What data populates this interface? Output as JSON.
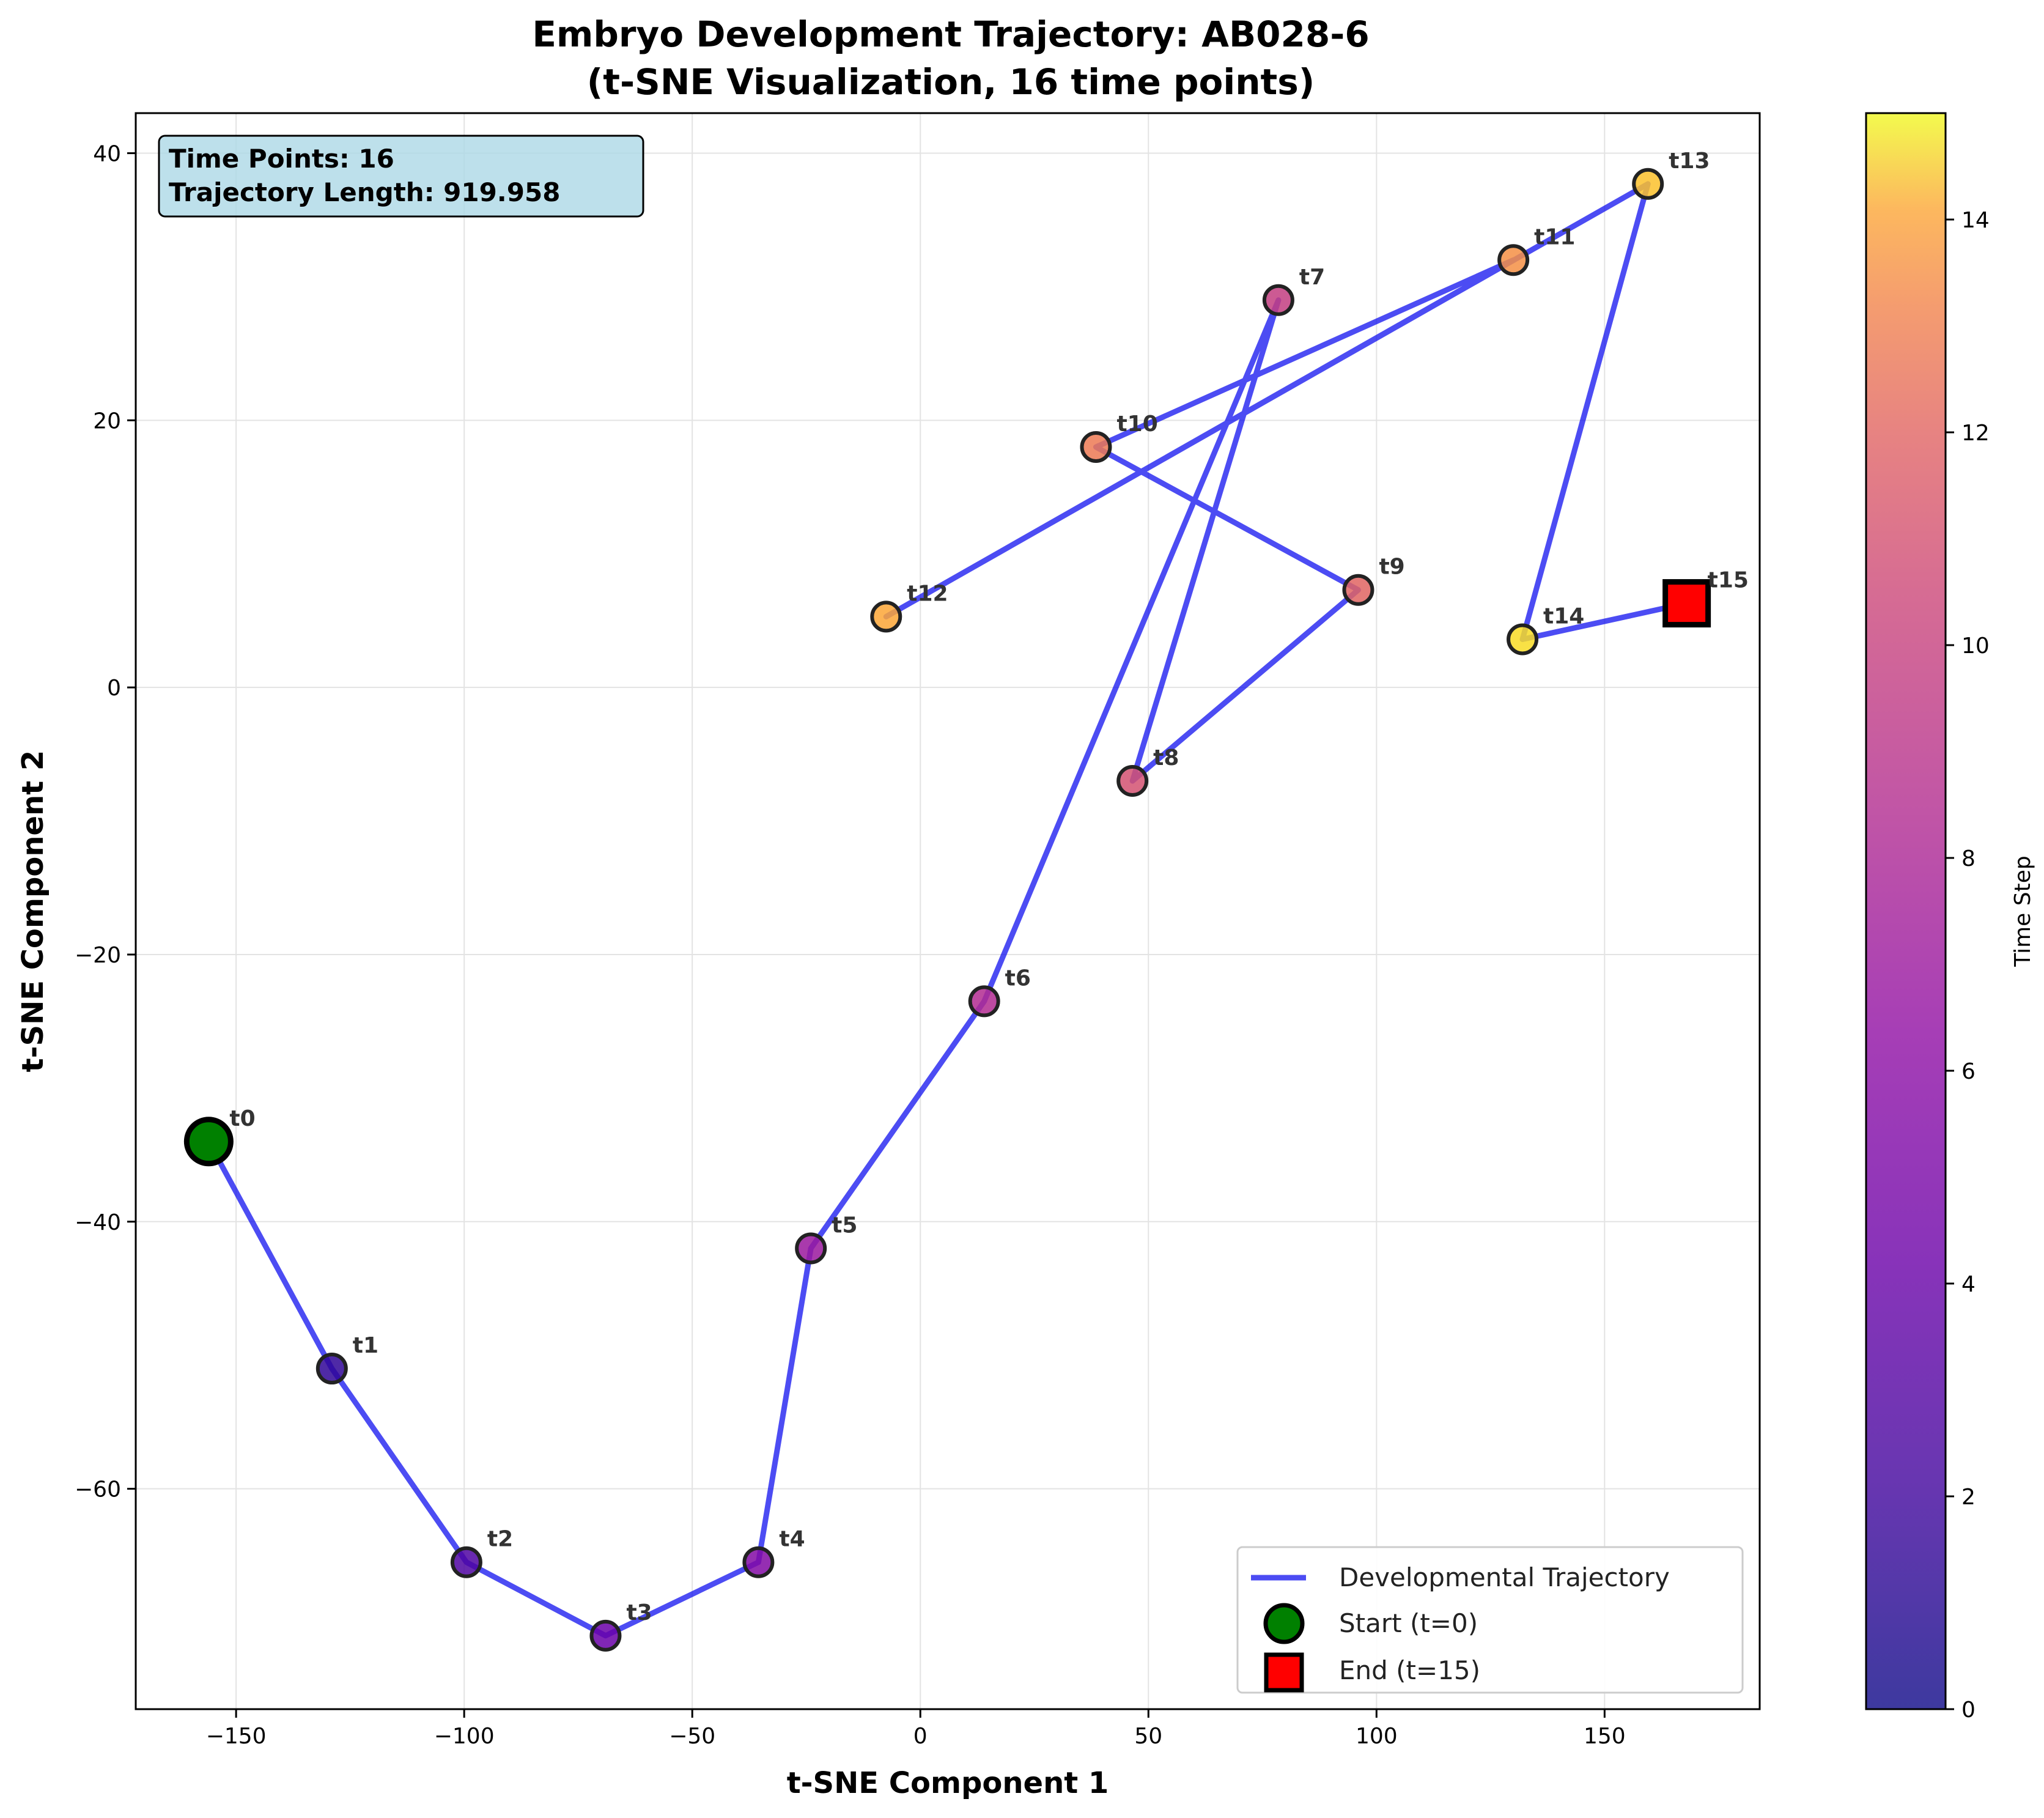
{
  "chart_data": {
    "type": "scatter",
    "title": "Embryo Development Trajectory: AB028-6",
    "subtitle": "(t-SNE Visualization, 16 time points)",
    "xlabel": "t-SNE Component 1",
    "ylabel": "t-SNE Component 2",
    "xlim": [
      -172,
      184
    ],
    "ylim": [
      -76.5,
      43
    ],
    "xticks": [
      -150,
      -100,
      -50,
      0,
      50,
      100,
      150
    ],
    "yticks": [
      -60,
      -40,
      -20,
      0,
      20,
      40
    ],
    "xtick_labels": [
      "−150",
      "−100",
      "−50",
      "0",
      "50",
      "100",
      "150"
    ],
    "ytick_labels": [
      "−60",
      "−40",
      "−20",
      "0",
      "20",
      "40"
    ],
    "grid": true,
    "points": [
      {
        "label": "t0",
        "x": -156,
        "y": -34
      },
      {
        "label": "t1",
        "x": -129,
        "y": -51
      },
      {
        "label": "t2",
        "x": -99.5,
        "y": -65.5
      },
      {
        "label": "t3",
        "x": -69,
        "y": -71
      },
      {
        "label": "t4",
        "x": -35.5,
        "y": -65.5
      },
      {
        "label": "t5",
        "x": -24,
        "y": -42
      },
      {
        "label": "t6",
        "x": 14,
        "y": -23.5
      },
      {
        "label": "t7",
        "x": 78.5,
        "y": 29
      },
      {
        "label": "t8",
        "x": 46.5,
        "y": -7
      },
      {
        "label": "t9",
        "x": 96,
        "y": 7.3
      },
      {
        "label": "t10",
        "x": 38.5,
        "y": 18
      },
      {
        "label": "t11",
        "x": 130,
        "y": 32
      },
      {
        "label": "t12",
        "x": -7.5,
        "y": 5.3
      },
      {
        "label": "t13",
        "x": 159.5,
        "y": 37.7
      },
      {
        "label": "t14",
        "x": 132,
        "y": 3.6
      },
      {
        "label": "t15",
        "x": 168,
        "y": 6.3
      }
    ],
    "info_box": {
      "line1": "Time Points: 16",
      "line2": "Trajectory Length: 919.958"
    },
    "legend": {
      "placement": "bottom-right",
      "entries": [
        "Developmental Trajectory",
        "Start (t=0)",
        "End (t=15)"
      ]
    },
    "colorbar": {
      "label": "Time Step",
      "min": 0,
      "max": 15,
      "ticks": [
        0,
        2,
        4,
        6,
        8,
        10,
        12,
        14
      ],
      "colormap": "plasma"
    },
    "colors": {
      "trajectory": "#0000ee",
      "start": "#008000",
      "end": "#ff0000",
      "info_box_bg": "#add8e6"
    }
  }
}
